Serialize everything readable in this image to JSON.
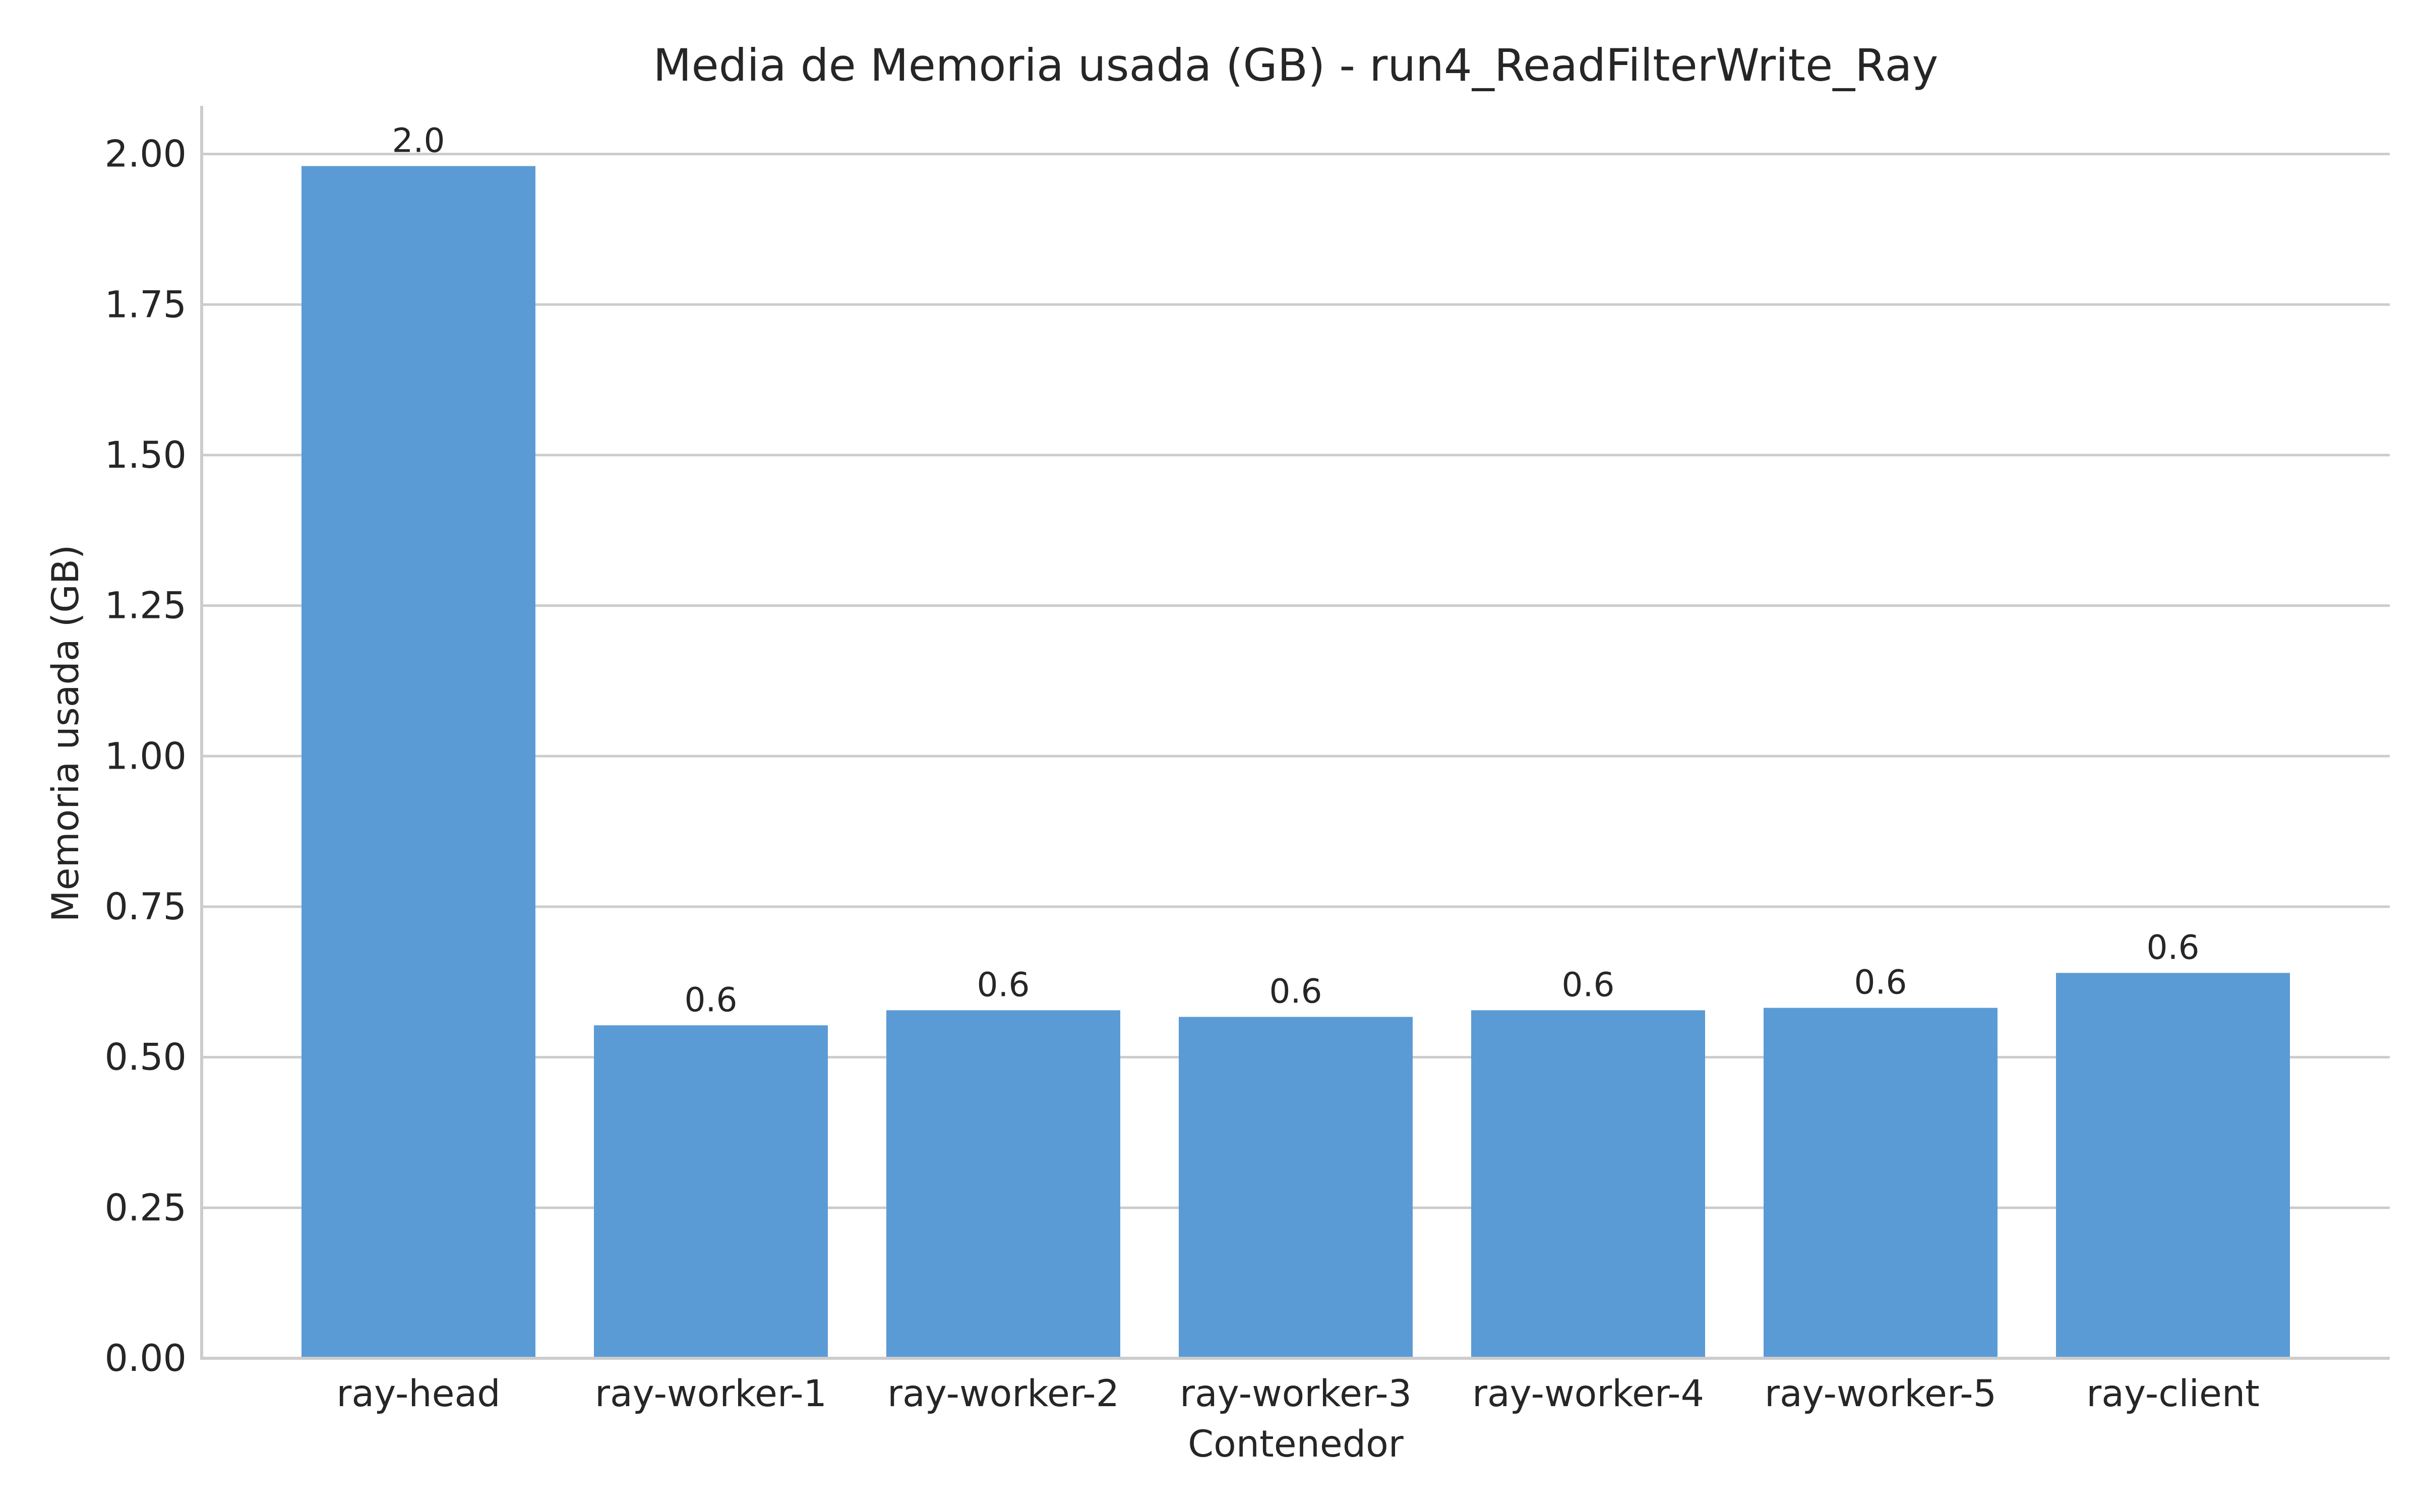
{
  "colors": {
    "bar": "#5b9bd5",
    "grid": "#cccccc",
    "text": "#262626"
  },
  "chart_data": {
    "type": "bar",
    "title": "Media de Memoria usada (GB) - run4_ReadFilterWrite_Ray",
    "xlabel": "Contenedor",
    "ylabel": "Memoria usada (GB)",
    "categories": [
      "ray-head",
      "ray-worker-1",
      "ray-worker-2",
      "ray-worker-3",
      "ray-worker-4",
      "ray-worker-5",
      "ray-client"
    ],
    "values": [
      1.98,
      0.553,
      0.578,
      0.567,
      0.578,
      0.582,
      0.64
    ],
    "data_labels": [
      "2.0",
      "0.6",
      "0.6",
      "0.6",
      "0.6",
      "0.6",
      "0.6"
    ],
    "ylim": [
      0,
      2.08
    ],
    "yticks": [
      0.0,
      0.25,
      0.5,
      0.75,
      1.0,
      1.25,
      1.5,
      1.75,
      2.0
    ],
    "ytick_labels": [
      "0.00",
      "0.25",
      "0.50",
      "0.75",
      "1.00",
      "1.25",
      "1.50",
      "1.75",
      "2.00"
    ],
    "grid": "horizontal",
    "legend": "none"
  }
}
